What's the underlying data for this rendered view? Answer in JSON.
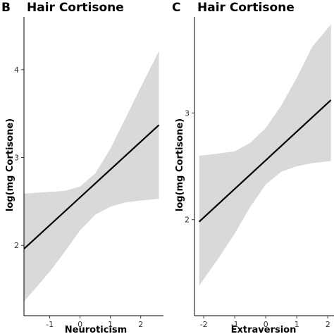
{
  "chart_data": [
    {
      "panel_label": "B",
      "title": "Hair Cortisone",
      "type": "line",
      "xlabel": "Neuroticism",
      "ylabel": "log(mg Cortisone)",
      "xlim": [
        -1.85,
        2.75
      ],
      "ylim": [
        1.2,
        4.6
      ],
      "xticks": [
        -1,
        0,
        1,
        2
      ],
      "yticks": [
        2,
        3,
        4
      ],
      "grid": false,
      "line": {
        "x": [
          -1.85,
          2.6
        ],
        "y": [
          1.96,
          3.37
        ]
      },
      "ci_band": {
        "x": [
          -1.85,
          -1.0,
          -0.5,
          0.0,
          0.5,
          1.0,
          1.5,
          2.0,
          2.6
        ],
        "lower": [
          1.36,
          1.7,
          1.93,
          2.17,
          2.35,
          2.44,
          2.49,
          2.51,
          2.53
        ],
        "upper": [
          2.59,
          2.61,
          2.62,
          2.67,
          2.82,
          3.1,
          3.45,
          3.8,
          4.21
        ]
      }
    },
    {
      "panel_label": "C",
      "title": "Hair Cortisone",
      "type": "line",
      "xlabel": "Extraversion",
      "ylabel": "log(mg Cortisone)",
      "xlim": [
        -2.3,
        2.2
      ],
      "ylim": [
        1.1,
        3.9
      ],
      "xticks": [
        -2,
        -1,
        0,
        1,
        2
      ],
      "yticks": [
        2,
        3
      ],
      "grid": false,
      "line": {
        "x": [
          -2.15,
          2.1
        ],
        "y": [
          1.98,
          3.12
        ]
      },
      "ci_band": {
        "x": [
          -2.15,
          -1.5,
          -1.0,
          -0.5,
          0.0,
          0.5,
          1.0,
          1.5,
          2.1
        ],
        "lower": [
          1.38,
          1.65,
          1.87,
          2.12,
          2.33,
          2.45,
          2.5,
          2.53,
          2.55
        ],
        "upper": [
          2.6,
          2.62,
          2.64,
          2.72,
          2.86,
          3.07,
          3.33,
          3.62,
          3.83
        ]
      }
    }
  ]
}
